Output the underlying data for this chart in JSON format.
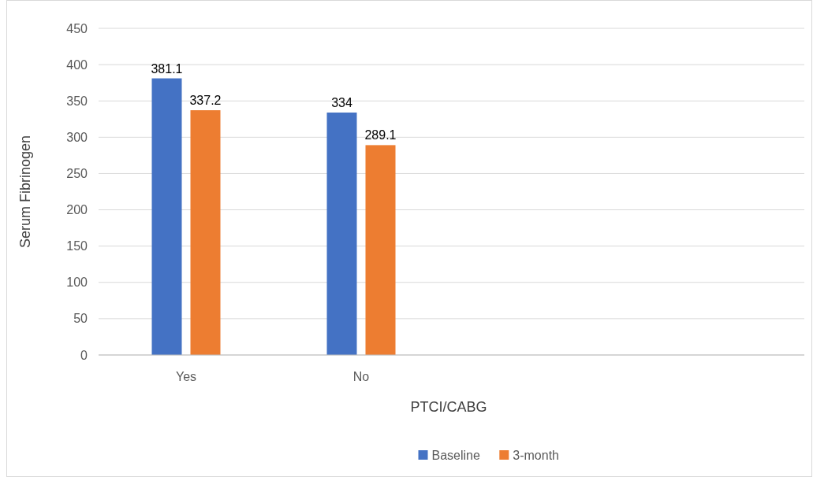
{
  "chart_data": {
    "type": "bar",
    "xlabel": "PTCI/CABG",
    "ylabel": "Serum Fibrinogen",
    "categories": [
      "Yes",
      "No",
      null,
      null
    ],
    "series": [
      {
        "name": "Baseline",
        "color": "#4472c4",
        "values": [
          381.1,
          334,
          null,
          null
        ]
      },
      {
        "name": "3-month",
        "color": "#ed7d31",
        "values": [
          337.2,
          289.1,
          null,
          null
        ]
      }
    ],
    "ylim": [
      0,
      450
    ],
    "yticks": [
      0,
      50,
      100,
      150,
      200,
      250,
      300,
      350,
      400,
      450
    ],
    "grid": "y",
    "legend": "bottom",
    "data_labels": true
  }
}
